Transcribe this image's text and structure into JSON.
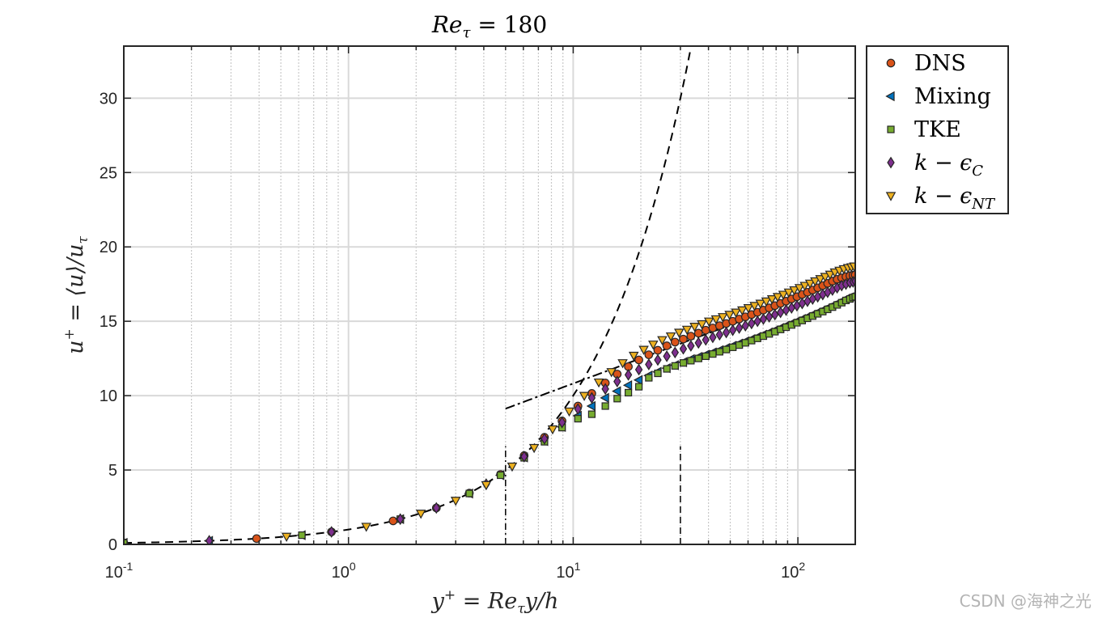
{
  "chart_data": {
    "type": "scatter",
    "title": "Re_τ = 180",
    "title_main": "Re",
    "title_sub": "τ",
    "title_value": " = 180",
    "xlabel": "y⁺ = Re_τ y/h",
    "xlabel_parts": [
      "y",
      "+",
      " = Re",
      "τ",
      "y/h"
    ],
    "ylabel": "u⁺ = ⟨u⟩/u_τ",
    "ylabel_parts": [
      "u",
      "+",
      " = ⟨u⟩/u",
      "τ"
    ],
    "xscale": "log",
    "xlim": [
      0.1,
      180
    ],
    "ylim": [
      0,
      33.5
    ],
    "x_ticks": [
      {
        "value": 0.1,
        "base": "10",
        "exp": "-1"
      },
      {
        "value": 1,
        "base": "10",
        "exp": "0"
      },
      {
        "value": 10,
        "base": "10",
        "exp": "1"
      },
      {
        "value": 100,
        "base": "10",
        "exp": "2"
      }
    ],
    "y_ticks": [
      0,
      5,
      10,
      15,
      20,
      25,
      30
    ],
    "grid": true,
    "legend_position": "outside-top-right",
    "legend": [
      {
        "label": "DNS",
        "color": "#D95319",
        "marker": "circle"
      },
      {
        "label": "Mixing",
        "color": "#0072BD",
        "marker": "triangle-left"
      },
      {
        "label": "TKE",
        "color": "#77AC30",
        "marker": "square"
      },
      {
        "label": "k − ϵ",
        "sub": "C",
        "color": "#7E2F8E",
        "marker": "diamond"
      },
      {
        "label": "k − ϵ",
        "sub": "NT",
        "color": "#EDB120",
        "marker": "triangle-down"
      }
    ],
    "series": [
      {
        "name": "DNS",
        "color": "#D95319",
        "marker": "circle",
        "x": [
          0.1,
          0.39,
          0.84,
          1.58,
          2.46,
          3.45,
          4.75,
          6.05,
          7.45,
          8.92,
          10.5,
          12.1,
          13.9,
          15.7,
          17.6,
          19.6,
          21.7,
          23.8,
          26.1,
          28.4,
          30.9,
          33.4,
          36.1,
          38.9,
          41.8,
          44.8,
          48.0,
          51.3,
          54.8,
          58.4,
          62.2,
          66.1,
          70.2,
          74.5,
          79.0,
          83.7,
          88.6,
          93.7,
          99.0,
          104.5,
          110.3,
          116.3,
          122.5,
          129.0,
          135.6,
          142.5,
          149.5,
          156.6,
          163.6,
          170.4,
          176.0,
          180.0
        ],
        "y": [
          0.1,
          0.39,
          0.84,
          1.58,
          2.45,
          3.45,
          4.7,
          5.97,
          7.2,
          8.3,
          9.3,
          10.15,
          10.85,
          11.45,
          11.95,
          12.4,
          12.75,
          13.05,
          13.35,
          13.6,
          13.8,
          14.0,
          14.2,
          14.4,
          14.55,
          14.7,
          14.85,
          15.0,
          15.15,
          15.3,
          15.45,
          15.6,
          15.75,
          15.9,
          16.05,
          16.2,
          16.35,
          16.5,
          16.65,
          16.8,
          16.95,
          17.1,
          17.25,
          17.4,
          17.55,
          17.7,
          17.82,
          17.92,
          18.0,
          18.06,
          18.1,
          18.12
        ]
      },
      {
        "name": "Mixing",
        "color": "#0072BD",
        "marker": "triangle-left",
        "x": [
          0.1,
          0.24,
          0.62,
          1.7,
          3.45,
          4.75,
          6.05,
          7.45,
          8.92,
          10.5,
          12.1,
          13.9,
          15.7,
          17.6,
          19.6,
          21.7,
          23.8,
          26.1,
          28.4,
          30.9,
          33.4,
          36.1,
          38.9,
          41.8,
          44.8,
          48.0,
          51.3,
          54.8,
          58.4,
          62.2,
          66.1,
          70.2,
          74.5,
          79.0,
          83.7,
          88.6,
          93.7,
          99.0,
          104.5,
          110.3,
          116.3,
          122.5,
          129.0,
          135.6,
          142.5,
          149.5,
          156.6,
          163.6,
          170.4,
          176.0,
          180.0
        ],
        "y": [
          0.1,
          0.24,
          0.62,
          1.7,
          3.42,
          4.65,
          5.85,
          6.95,
          7.9,
          8.65,
          9.3,
          9.85,
          10.3,
          10.7,
          11.05,
          11.35,
          11.6,
          11.85,
          12.05,
          12.25,
          12.45,
          12.6,
          12.75,
          12.9,
          13.05,
          13.2,
          13.35,
          13.5,
          13.65,
          13.8,
          13.95,
          14.1,
          14.25,
          14.4,
          14.55,
          14.7,
          14.85,
          15.0,
          15.15,
          15.3,
          15.45,
          15.6,
          15.75,
          15.9,
          16.05,
          16.2,
          16.35,
          16.5,
          16.6,
          16.7,
          16.75
        ]
      },
      {
        "name": "TKE",
        "color": "#77AC30",
        "marker": "square",
        "x": [
          0.1,
          0.62,
          1.7,
          3.45,
          4.75,
          6.05,
          7.45,
          8.92,
          10.5,
          12.1,
          13.9,
          15.7,
          17.6,
          19.6,
          21.7,
          23.8,
          26.1,
          28.4,
          30.9,
          33.4,
          36.1,
          38.9,
          41.8,
          44.8,
          48.0,
          51.3,
          54.8,
          58.4,
          62.2,
          66.1,
          70.2,
          74.5,
          79.0,
          83.7,
          88.6,
          93.7,
          99.0,
          104.5,
          110.3,
          116.3,
          122.5,
          129.0,
          135.6,
          142.5,
          149.5,
          156.6,
          163.6,
          170.4,
          176.0,
          180.0
        ],
        "y": [
          0.1,
          0.62,
          1.7,
          3.42,
          4.65,
          5.82,
          6.9,
          7.85,
          8.45,
          8.75,
          9.3,
          9.8,
          10.2,
          10.6,
          11.2,
          11.5,
          11.8,
          12.0,
          12.2,
          12.35,
          12.5,
          12.65,
          12.8,
          12.95,
          13.1,
          13.25,
          13.4,
          13.55,
          13.7,
          13.85,
          14.0,
          14.15,
          14.3,
          14.45,
          14.6,
          14.75,
          14.9,
          15.05,
          15.2,
          15.35,
          15.5,
          15.65,
          15.8,
          15.95,
          16.1,
          16.25,
          16.4,
          16.5,
          16.6,
          16.65
        ]
      },
      {
        "name": "k-εC",
        "color": "#7E2F8E",
        "marker": "diamond",
        "x": [
          0.24,
          0.84,
          1.7,
          2.46,
          4.1,
          6.05,
          7.45,
          8.92,
          10.5,
          12.1,
          13.9,
          15.7,
          17.6,
          19.6,
          21.7,
          23.8,
          26.1,
          28.4,
          30.9,
          33.4,
          36.1,
          38.9,
          41.8,
          44.8,
          48.0,
          51.3,
          54.8,
          58.4,
          62.2,
          66.1,
          70.2,
          74.5,
          79.0,
          83.7,
          88.6,
          93.7,
          99.0,
          104.5,
          110.3,
          116.3,
          122.5,
          129.0,
          135.6,
          142.5,
          149.5,
          156.6,
          163.6,
          170.4,
          176.0,
          180.0
        ],
        "y": [
          0.24,
          0.84,
          1.7,
          2.45,
          4.05,
          5.9,
          7.1,
          8.2,
          9.1,
          9.85,
          10.45,
          10.95,
          11.4,
          11.75,
          12.1,
          12.4,
          12.65,
          12.9,
          13.15,
          13.35,
          13.55,
          13.75,
          13.92,
          14.1,
          14.25,
          14.4,
          14.55,
          14.7,
          14.85,
          15.0,
          15.15,
          15.3,
          15.45,
          15.6,
          15.75,
          15.9,
          16.05,
          16.2,
          16.35,
          16.5,
          16.65,
          16.8,
          16.95,
          17.1,
          17.25,
          17.4,
          17.5,
          17.6,
          17.65,
          17.7
        ]
      },
      {
        "name": "k-εNT",
        "color": "#EDB120",
        "marker": "triangle-down",
        "x": [
          0.53,
          1.2,
          2.1,
          3.0,
          4.1,
          5.35,
          6.7,
          8.1,
          9.6,
          11.2,
          13.0,
          14.8,
          16.6,
          18.6,
          20.6,
          22.7,
          24.9,
          27.2,
          29.6,
          32.1,
          34.7,
          37.4,
          40.2,
          43.2,
          46.3,
          49.6,
          53.0,
          56.5,
          60.2,
          64.1,
          68.1,
          72.3,
          76.7,
          81.3,
          86.1,
          91.1,
          96.3,
          101.7,
          107.3,
          113.2,
          119.3,
          125.7,
          132.2,
          139.0,
          146.0,
          153.0,
          160.0,
          167.0,
          173.0,
          178.0
        ],
        "y": [
          0.53,
          1.2,
          2.08,
          2.95,
          4.0,
          5.25,
          6.5,
          7.75,
          8.95,
          10.0,
          10.9,
          11.6,
          12.2,
          12.7,
          13.1,
          13.45,
          13.75,
          14.0,
          14.25,
          14.45,
          14.65,
          14.82,
          15.0,
          15.15,
          15.3,
          15.45,
          15.6,
          15.75,
          15.9,
          16.05,
          16.2,
          16.35,
          16.5,
          16.65,
          16.8,
          16.95,
          17.1,
          17.25,
          17.4,
          17.55,
          17.7,
          17.85,
          18.0,
          18.15,
          18.3,
          18.42,
          18.52,
          18.6,
          18.65,
          18.7
        ]
      }
    ],
    "reference_lines": [
      {
        "name": "viscous-sublayer u+ = y+",
        "style": "dashed",
        "color": "#000000",
        "x_range": [
          0.1,
          33.5
        ]
      },
      {
        "name": "log-law u+ = ln(y+)/0.41 + 5.2",
        "style": "dash-dot",
        "color": "#000000",
        "x_range": [
          5,
          80
        ]
      },
      {
        "name": "y+ = 5 marker",
        "style": "dash-dot-vertical",
        "color": "#000000",
        "x": 5,
        "y_range": [
          0,
          6.6
        ]
      },
      {
        "name": "y+ = 30 marker",
        "style": "dashed-vertical",
        "color": "#000000",
        "x": 30,
        "y_range": [
          0,
          6.6
        ]
      }
    ]
  },
  "watermark": "CSDN @海神之光"
}
